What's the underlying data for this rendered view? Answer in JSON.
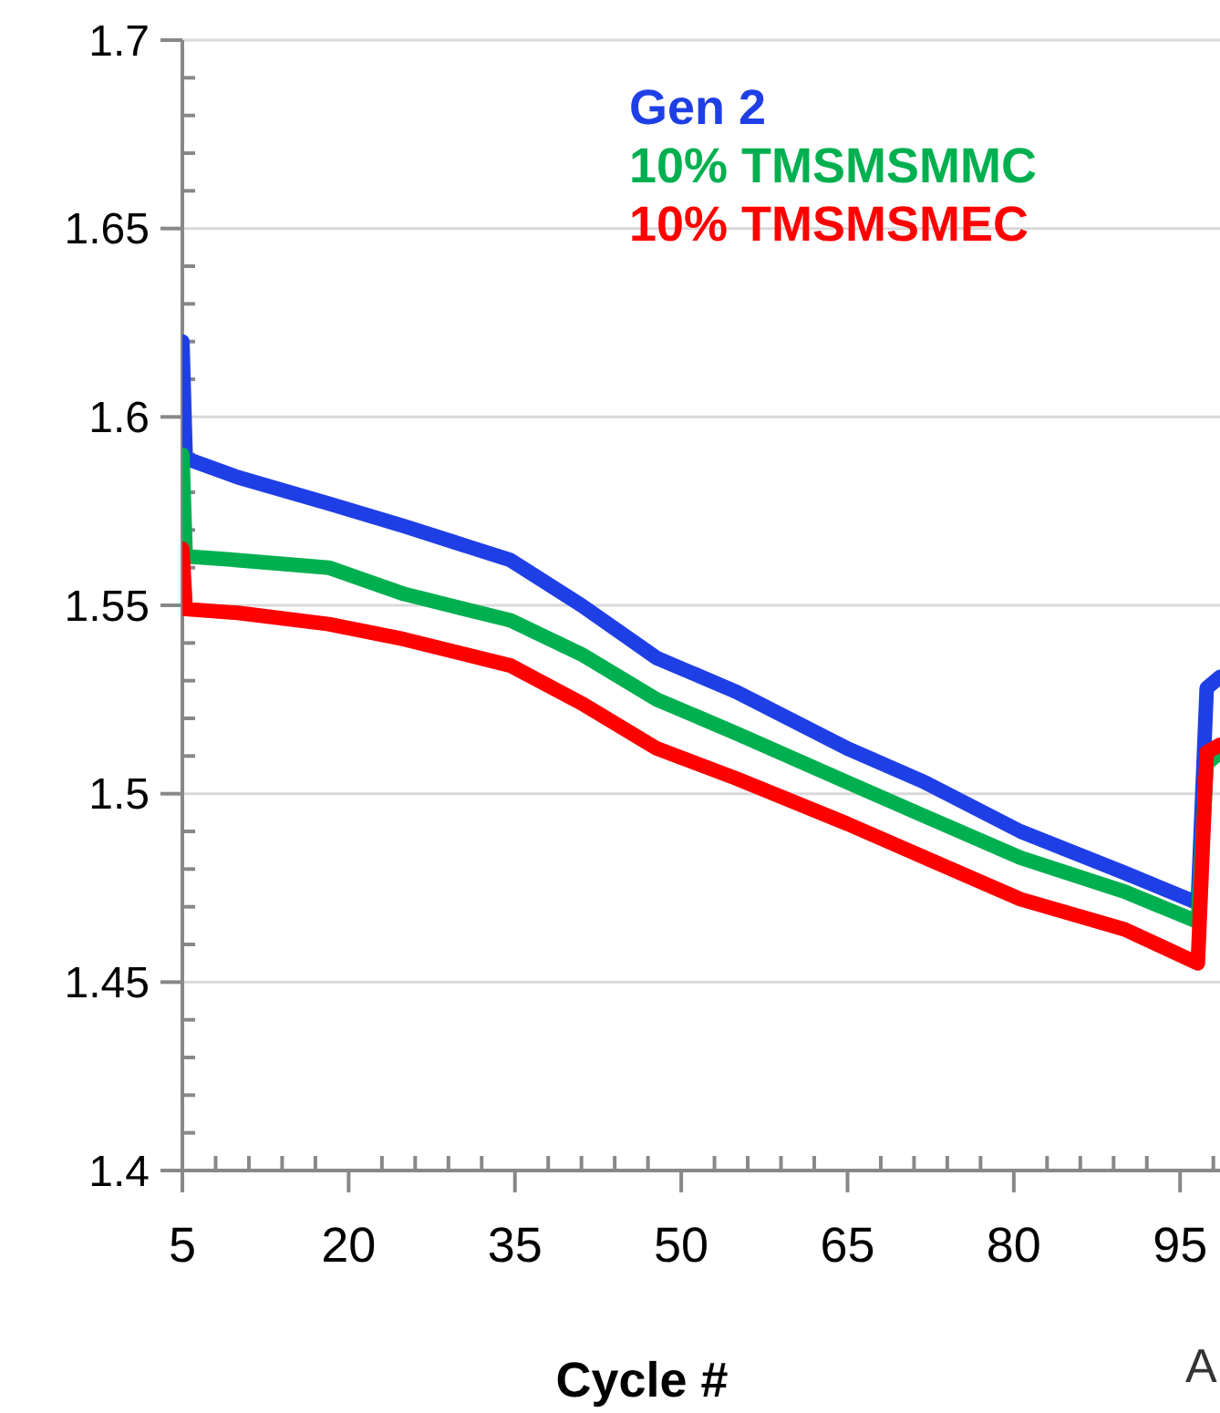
{
  "chart_data": {
    "type": "line",
    "xlabel": "Cycle #",
    "annotations": [
      "A"
    ],
    "xlim": [
      5,
      98.6
    ],
    "xticks": [
      5,
      {
        "value": 8,
        "label": null
      },
      {
        "value": 11,
        "label": null
      },
      {
        "value": 14,
        "label": null
      },
      {
        "value": 17,
        "label": null
      },
      20,
      {
        "value": 23,
        "label": null
      },
      {
        "value": 26,
        "label": null
      },
      {
        "value": 29,
        "label": null
      },
      {
        "value": 32,
        "label": null
      },
      35,
      {
        "value": 38,
        "label": null
      },
      {
        "value": 41,
        "label": null
      },
      {
        "value": 44,
        "label": null
      },
      {
        "value": 47,
        "label": null
      },
      50,
      {
        "value": 53,
        "label": null
      },
      {
        "value": 56,
        "label": null
      },
      {
        "value": 59,
        "label": null
      },
      {
        "value": 62,
        "label": null
      },
      65,
      {
        "value": 68,
        "label": null
      },
      {
        "value": 71,
        "label": null
      },
      {
        "value": 74,
        "label": null
      },
      {
        "value": 77,
        "label": null
      },
      80,
      {
        "value": 83,
        "label": null
      },
      {
        "value": 86,
        "label": null
      },
      {
        "value": 89,
        "label": null
      },
      {
        "value": 92,
        "label": null
      },
      95,
      {
        "value": 98,
        "label": null
      }
    ],
    "ylim": [
      1.4,
      1.7
    ],
    "yticks": [
      1.4,
      {
        "value": 1.41,
        "label": null
      },
      {
        "value": 1.42,
        "label": null
      },
      {
        "value": 1.43,
        "label": null
      },
      {
        "value": 1.44,
        "label": null
      },
      1.45,
      {
        "value": 1.46,
        "label": null
      },
      {
        "value": 1.47,
        "label": null
      },
      {
        "value": 1.48,
        "label": null
      },
      {
        "value": 1.49,
        "label": null
      },
      1.5,
      {
        "value": 1.51,
        "label": null
      },
      {
        "value": 1.52,
        "label": null
      },
      {
        "value": 1.53,
        "label": null
      },
      {
        "value": 1.54,
        "label": null
      },
      1.55,
      {
        "value": 1.56,
        "label": null
      },
      {
        "value": 1.57,
        "label": null
      },
      {
        "value": 1.58,
        "label": null
      },
      {
        "value": 1.59,
        "label": null
      },
      1.6,
      {
        "value": 1.61,
        "label": null
      },
      {
        "value": 1.62,
        "label": null
      },
      {
        "value": 1.63,
        "label": null
      },
      {
        "value": 1.64,
        "label": null
      },
      1.65,
      {
        "value": 1.66,
        "label": null
      },
      {
        "value": 1.67,
        "label": null
      },
      {
        "value": 1.68,
        "label": null
      },
      {
        "value": 1.69,
        "label": null
      },
      1.7
    ],
    "grid": "y",
    "legend": "top",
    "marker": "none",
    "line_style": "solid",
    "series": [
      {
        "name": "Gen 2",
        "color": "#1f3fe6",
        "x": [
          5,
          5.3,
          10,
          18.2,
          25,
          34.6,
          41,
          47.8,
          55,
          65,
          72,
          80.6,
          90,
          96.6,
          97.4,
          98.6
        ],
        "values": [
          1.62,
          1.589,
          1.584,
          1.577,
          1.571,
          1.562,
          1.55,
          1.536,
          1.527,
          1.512,
          1.503,
          1.49,
          1.479,
          1.471,
          1.528,
          1.531
        ]
      },
      {
        "name": "10% TMSMSMMC",
        "color": "#00b050",
        "x": [
          5,
          5.3,
          10,
          18.2,
          25,
          34.6,
          41,
          47.8,
          55,
          65,
          72,
          80.6,
          90,
          96.6,
          97.4,
          98.6
        ],
        "values": [
          1.59,
          1.563,
          1.562,
          1.56,
          1.553,
          1.546,
          1.537,
          1.525,
          1.516,
          1.503,
          1.494,
          1.483,
          1.474,
          1.466,
          1.508,
          1.511
        ]
      },
      {
        "name": "10% TMSMSMEC",
        "color": "#ff0000",
        "x": [
          5,
          5.3,
          10,
          18.2,
          25,
          34.6,
          41,
          47.8,
          55,
          65,
          72,
          80.6,
          90,
          96.6,
          97.4,
          98.6
        ],
        "values": [
          1.565,
          1.549,
          1.548,
          1.545,
          1.541,
          1.534,
          1.524,
          1.512,
          1.504,
          1.492,
          1.483,
          1.472,
          1.464,
          1.455,
          1.511,
          1.513
        ]
      }
    ]
  }
}
